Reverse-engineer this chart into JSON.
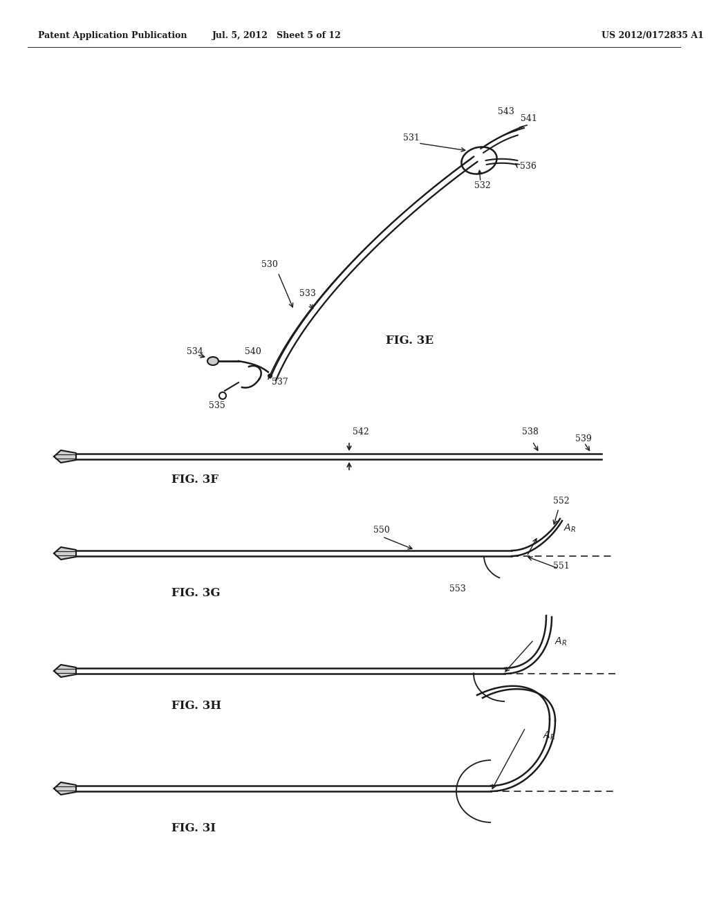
{
  "bg_color": "#ffffff",
  "header_left": "Patent Application Publication",
  "header_mid": "Jul. 5, 2012   Sheet 5 of 12",
  "header_right": "US 2012/0172835 A1",
  "fig3e_label": "FIG. 3E",
  "fig3f_label": "FIG. 3F",
  "fig3g_label": "FIG. 3G",
  "fig3h_label": "FIG. 3H",
  "fig3i_label": "FIG. 3I",
  "line_color": "#1a1a1a",
  "label_fontsize": 9,
  "fig_label_fontsize": 12,
  "header_fontsize": 9
}
